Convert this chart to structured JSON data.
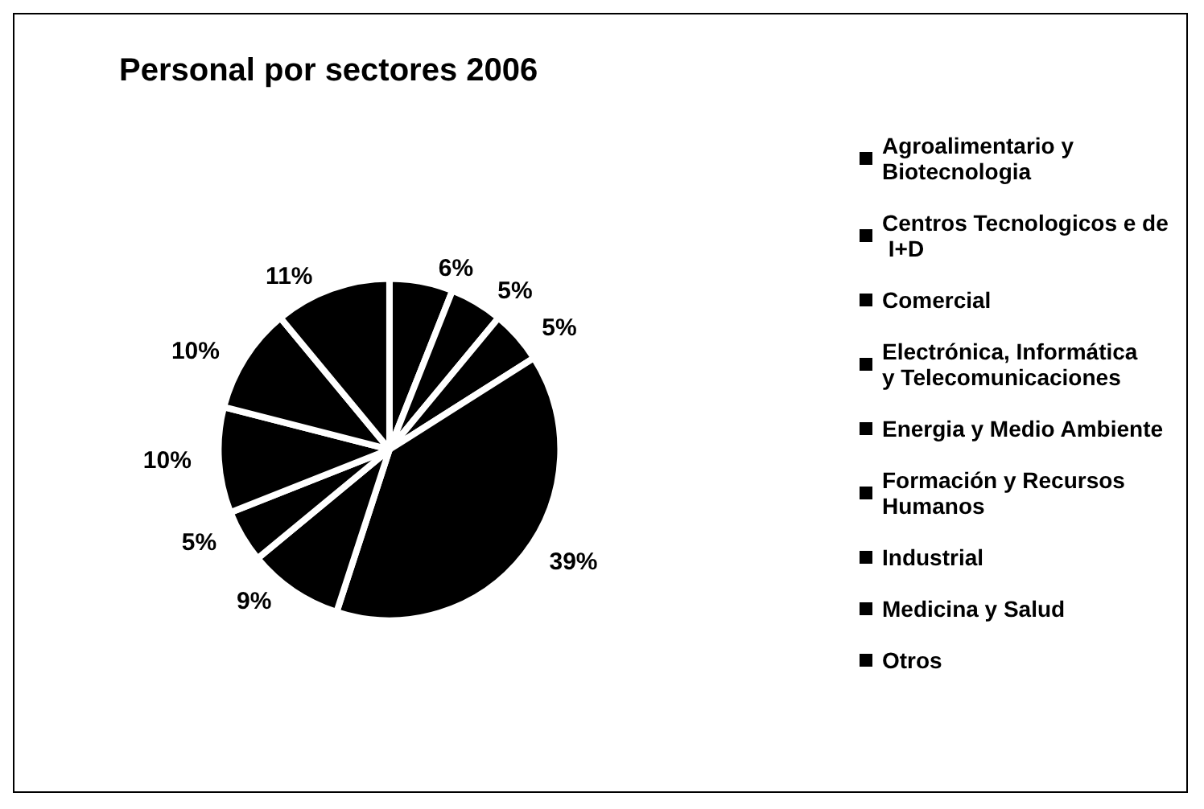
{
  "chart_data": {
    "type": "pie",
    "title": "Personal por sectores 2006",
    "categories": [
      "Agroalimentario y Biotecnologia",
      "Centros Tecnologicos e de I+D",
      "Comercial",
      "Electrónica, Informática y Telecomunicaciones",
      "Energia y Medio Ambiente",
      "Formación y Recursos Humanos",
      "Industrial",
      "Medicina y Salud",
      "Otros"
    ],
    "values": [
      6,
      5,
      5,
      39,
      9,
      5,
      10,
      10,
      11
    ],
    "colors": [
      "#000000",
      "#000000",
      "#000000",
      "#000000",
      "#000000",
      "#000000",
      "#000000",
      "#000000",
      "#000000"
    ],
    "value_labels": [
      "6%",
      "5%",
      "5%",
      "39%",
      "9%",
      "5%",
      "10%",
      "10%",
      "11%"
    ],
    "legend": "right"
  }
}
